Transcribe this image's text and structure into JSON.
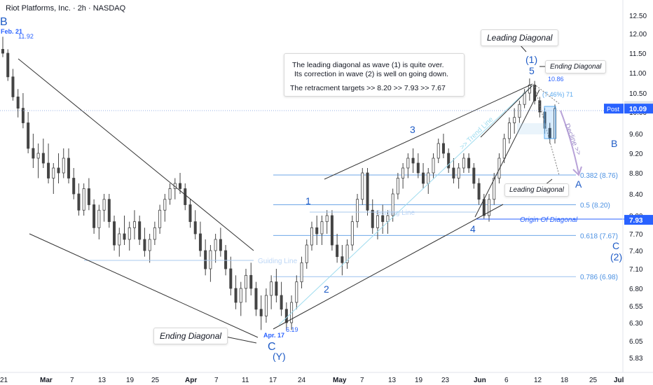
{
  "header": {
    "title": "Riot Platforms, Inc. · 2h · NASDAQ"
  },
  "price_axis": {
    "ticks": [
      "12.50",
      "12.00",
      "11.50",
      "11.00",
      "10.50",
      "10.00",
      "9.60",
      "9.20",
      "8.80",
      "8.40",
      "8.00",
      "7.70",
      "7.40",
      "7.10",
      "6.80",
      "6.55",
      "6.30",
      "6.05",
      "5.83"
    ],
    "badges": [
      {
        "label": "10.16",
        "value": 10.16,
        "bg": "#e0e3eb",
        "fg": "#131722"
      },
      {
        "label": "10.09",
        "value": 10.09,
        "bg": "#2962ff",
        "fg": "#ffffff",
        "tag": "Post"
      },
      {
        "label": "7.93",
        "value": 7.93,
        "bg": "#2962ff",
        "fg": "#ffffff"
      }
    ]
  },
  "time_axis": {
    "ticks": [
      "21",
      "Mar",
      "7",
      "13",
      "19",
      "25",
      "Apr",
      "7",
      "11",
      "17",
      "24",
      "May",
      "7",
      "13",
      "19",
      "23",
      "Jun",
      "6",
      "12",
      "18",
      "25",
      "Jul"
    ]
  },
  "annotations": {
    "note_line1": "The leading diagonal as wave (1) is quite over.",
    "note_line2": "Its correction in wave (2) is well on going down.",
    "note_line3": "The retracment targets >>  8.20  >>  7.93  >>  7.67",
    "leading_diagonal_top": "Leading Diagonal",
    "ending_diagonal_top": "Ending Diagonal",
    "leading_diagonal_mid": "Leading Diagonal",
    "ending_diagonal_bottom": "Ending Diagonal",
    "origin_of_diagonal": "Origin Of Diagonal",
    "guiding_line_left": "Guiding Line",
    "guiding_line_mid": "Guiding Line",
    "trend_line": ">> Trend Line",
    "decline": "Decline >>",
    "pct_label": "(7.46%) 71",
    "date_feb": "Feb. 21",
    "date_apr": "Apr. 17"
  },
  "chart_data": {
    "type": "candlestick",
    "title": "Riot Platforms, Inc. · 2h · NASDAQ",
    "ylim": [
      5.83,
      12.5
    ],
    "y_scale": "nonlinear",
    "grid": false,
    "colors": {
      "candles": "#444444",
      "fib": "#4a90e2",
      "wave": "#1e5bc6",
      "lines": "#333333"
    },
    "key_prices": [
      {
        "label": "11.92",
        "value": 11.92
      },
      {
        "label": "6.19",
        "value": 6.19
      },
      {
        "label": "10.86",
        "value": 10.86
      }
    ],
    "fib_levels": [
      {
        "label": "0.382 (8.76)",
        "value": 8.76
      },
      {
        "label": "0.5 (8.20)",
        "value": 8.2
      },
      {
        "label": "0.618 (7.67)",
        "value": 7.67
      },
      {
        "label": "0.786 (6.98)",
        "value": 6.98
      }
    ],
    "wave_labels": [
      "B",
      "C",
      "(Y)",
      "1",
      "2",
      "3",
      "4",
      "5",
      "(1)",
      "A",
      "B",
      "C",
      "(2)"
    ],
    "trendlines": [
      {
        "name": "Ending Diagonal",
        "from": [
          "Feb. 21",
          11.6
        ],
        "to": [
          "Apr. 14",
          7.5
        ]
      },
      {
        "name": "Ending Diagonal",
        "from": [
          "Feb. 21",
          7.7
        ],
        "to": [
          "Apr. 16",
          6.1
        ]
      },
      {
        "name": "Leading Diagonal",
        "from": [
          "Apr. 19",
          6.3
        ],
        "to": [
          "Jun. 9",
          8.2
        ]
      },
      {
        "name": "Leading Diagonal",
        "from": [
          "May. 1",
          8.65
        ],
        "to": [
          "Jun. 10",
          10.6
        ]
      }
    ],
    "series": [
      {
        "values": [
          [
            11.6,
            11.92,
            11.4,
            11.5
          ],
          [
            11.5,
            11.6,
            10.8,
            10.9
          ],
          [
            10.9,
            11.1,
            10.3,
            10.4
          ],
          [
            10.4,
            10.6,
            9.9,
            10.1
          ],
          [
            10.1,
            10.5,
            9.7,
            9.8
          ],
          [
            9.8,
            10.0,
            9.2,
            9.3
          ],
          [
            9.3,
            9.6,
            8.9,
            9.1
          ],
          [
            9.1,
            9.4,
            8.7,
            9.2
          ],
          [
            9.2,
            9.5,
            8.9,
            9.0
          ],
          [
            9.0,
            9.4,
            8.6,
            8.7
          ],
          [
            8.7,
            9.0,
            8.4,
            8.9
          ],
          [
            8.9,
            9.2,
            8.6,
            8.8
          ],
          [
            8.8,
            9.3,
            8.7,
            9.1
          ],
          [
            9.1,
            9.3,
            8.6,
            8.7
          ],
          [
            8.7,
            8.9,
            8.3,
            8.4
          ],
          [
            8.4,
            8.6,
            8.0,
            8.1
          ],
          [
            8.1,
            8.6,
            8.0,
            8.5
          ],
          [
            8.5,
            8.7,
            8.1,
            8.2
          ],
          [
            8.2,
            8.3,
            7.7,
            7.8
          ],
          [
            7.8,
            8.2,
            7.6,
            8.1
          ],
          [
            8.1,
            8.4,
            7.9,
            8.3
          ],
          [
            8.3,
            8.4,
            7.8,
            7.9
          ],
          [
            7.9,
            8.0,
            7.4,
            7.5
          ],
          [
            7.5,
            7.8,
            7.3,
            7.7
          ],
          [
            7.7,
            8.0,
            7.5,
            7.6
          ],
          [
            7.6,
            7.9,
            7.4,
            7.8
          ],
          [
            7.8,
            8.1,
            7.6,
            7.9
          ],
          [
            7.9,
            8.0,
            7.5,
            7.6
          ],
          [
            7.6,
            7.8,
            7.3,
            7.4
          ],
          [
            7.4,
            7.7,
            7.2,
            7.6
          ],
          [
            7.6,
            7.9,
            7.5,
            7.8
          ],
          [
            7.8,
            8.2,
            7.7,
            8.1
          ],
          [
            8.1,
            8.4,
            7.9,
            8.3
          ],
          [
            8.3,
            8.6,
            8.2,
            8.5
          ],
          [
            8.5,
            8.7,
            8.3,
            8.6
          ],
          [
            8.6,
            8.8,
            8.4,
            8.5
          ],
          [
            8.5,
            8.6,
            8.1,
            8.2
          ],
          [
            8.2,
            8.3,
            7.8,
            7.9
          ],
          [
            7.9,
            8.1,
            7.6,
            7.7
          ],
          [
            7.7,
            7.9,
            7.3,
            7.4
          ],
          [
            7.4,
            7.6,
            7.0,
            7.1
          ],
          [
            7.1,
            7.5,
            6.9,
            7.4
          ],
          [
            7.4,
            7.7,
            7.2,
            7.6
          ],
          [
            7.6,
            7.8,
            7.3,
            7.4
          ],
          [
            7.4,
            7.5,
            7.0,
            7.1
          ],
          [
            7.1,
            7.3,
            6.7,
            6.8
          ],
          [
            6.8,
            7.0,
            6.5,
            6.6
          ],
          [
            6.6,
            6.9,
            6.4,
            6.8
          ],
          [
            6.8,
            7.1,
            6.6,
            7.0
          ],
          [
            7.0,
            7.2,
            6.7,
            6.8
          ],
          [
            6.8,
            6.9,
            6.4,
            6.5
          ],
          [
            6.5,
            6.7,
            6.2,
            6.4
          ],
          [
            6.4,
            6.8,
            6.3,
            6.7
          ],
          [
            6.7,
            7.0,
            6.5,
            6.9
          ],
          [
            6.9,
            7.1,
            6.6,
            6.7
          ],
          [
            6.7,
            6.9,
            6.4,
            6.5
          ],
          [
            6.5,
            6.6,
            6.19,
            6.3
          ],
          [
            6.3,
            6.7,
            6.2,
            6.6
          ],
          [
            6.6,
            7.0,
            6.5,
            6.9
          ],
          [
            6.9,
            7.3,
            6.8,
            7.2
          ],
          [
            7.2,
            7.6,
            7.1,
            7.5
          ],
          [
            7.5,
            7.9,
            7.4,
            7.8
          ],
          [
            7.8,
            8.0,
            7.5,
            7.7
          ],
          [
            7.7,
            8.0,
            7.5,
            7.9
          ],
          [
            7.9,
            8.1,
            7.7,
            8.0
          ],
          [
            8.0,
            8.1,
            7.4,
            7.5
          ],
          [
            7.5,
            7.7,
            7.2,
            7.3
          ],
          [
            7.3,
            7.5,
            7.0,
            7.2
          ],
          [
            7.2,
            7.6,
            7.1,
            7.5
          ],
          [
            7.5,
            8.0,
            7.4,
            7.9
          ],
          [
            7.9,
            8.4,
            7.8,
            8.3
          ],
          [
            8.3,
            8.9,
            8.2,
            8.8
          ],
          [
            8.8,
            8.9,
            8.0,
            8.1
          ],
          [
            8.1,
            8.3,
            7.7,
            7.8
          ],
          [
            7.8,
            8.1,
            7.6,
            8.0
          ],
          [
            8.0,
            8.2,
            7.7,
            7.9
          ],
          [
            7.9,
            8.1,
            7.7,
            8.0
          ],
          [
            8.0,
            8.5,
            7.9,
            8.4
          ],
          [
            8.4,
            8.8,
            8.3,
            8.7
          ],
          [
            8.7,
            9.0,
            8.5,
            8.9
          ],
          [
            8.9,
            9.2,
            8.7,
            9.1
          ],
          [
            9.1,
            9.3,
            8.8,
            9.0
          ],
          [
            9.0,
            9.2,
            8.7,
            8.8
          ],
          [
            8.8,
            9.0,
            8.5,
            8.6
          ],
          [
            8.6,
            8.9,
            8.4,
            8.8
          ],
          [
            8.8,
            9.2,
            8.7,
            9.1
          ],
          [
            9.1,
            9.5,
            9.0,
            9.4
          ],
          [
            9.4,
            9.6,
            9.1,
            9.2
          ],
          [
            9.2,
            9.3,
            8.8,
            8.9
          ],
          [
            8.9,
            9.1,
            8.6,
            8.7
          ],
          [
            8.7,
            9.0,
            8.5,
            8.9
          ],
          [
            8.9,
            9.2,
            8.8,
            9.1
          ],
          [
            9.1,
            9.2,
            8.8,
            8.9
          ],
          [
            8.9,
            9.0,
            8.5,
            8.6
          ],
          [
            8.6,
            8.7,
            8.2,
            8.3
          ],
          [
            8.3,
            8.4,
            7.95,
            8.0
          ],
          [
            8.0,
            8.4,
            7.9,
            8.3
          ],
          [
            8.3,
            8.8,
            8.2,
            8.7
          ],
          [
            8.7,
            9.2,
            8.6,
            9.1
          ],
          [
            9.1,
            9.6,
            9.0,
            9.5
          ],
          [
            9.5,
            9.9,
            9.4,
            9.8
          ],
          [
            9.8,
            10.1,
            9.6,
            9.9
          ],
          [
            9.9,
            10.3,
            9.8,
            10.2
          ],
          [
            10.2,
            10.6,
            10.1,
            10.5
          ],
          [
            10.5,
            10.86,
            10.3,
            10.7
          ],
          [
            10.7,
            10.8,
            10.2,
            10.3
          ],
          [
            10.3,
            10.4,
            9.9,
            10.0
          ],
          [
            10.0,
            10.1,
            9.6,
            9.7
          ],
          [
            9.7,
            9.8,
            9.4,
            9.5
          ],
          [
            9.5,
            10.2,
            9.4,
            10.09
          ]
        ]
      }
    ]
  }
}
